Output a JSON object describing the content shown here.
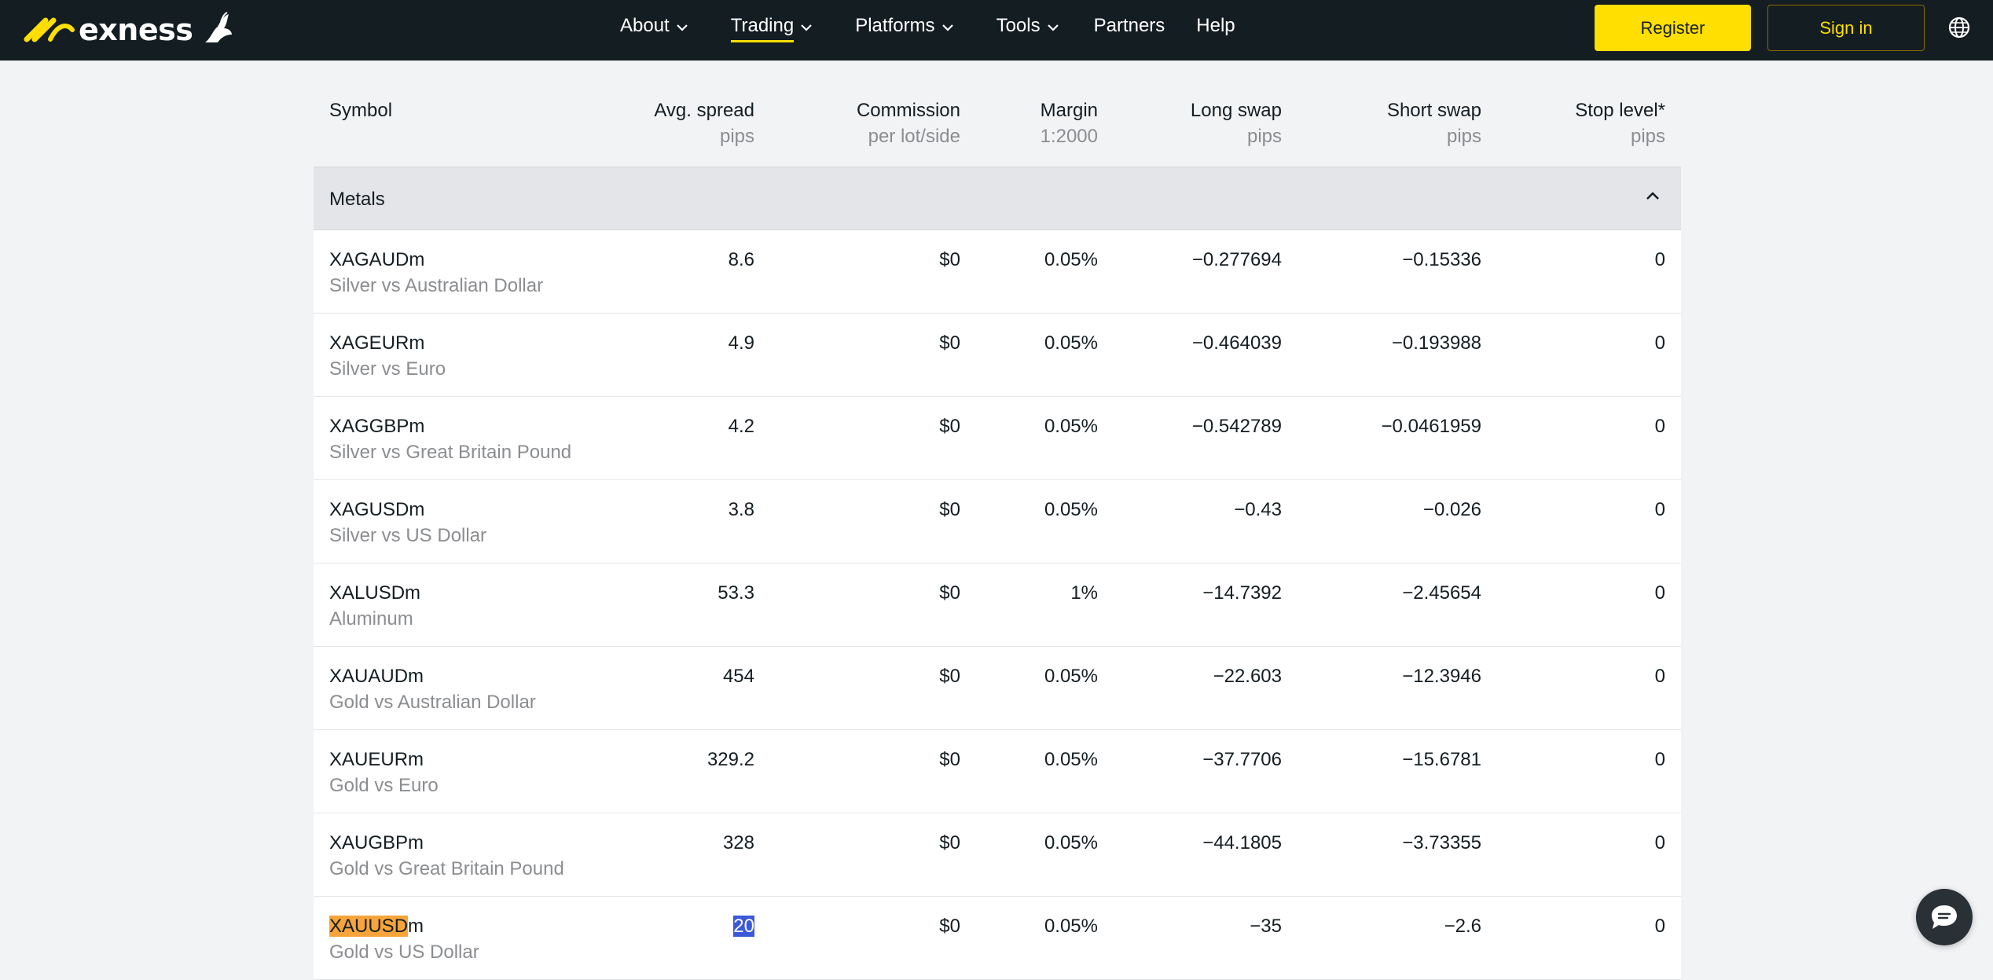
{
  "header": {
    "logo_text": "exness",
    "nav": [
      {
        "label": "About",
        "has_dropdown": true
      },
      {
        "label": "Trading",
        "has_dropdown": true,
        "active": true
      },
      {
        "label": "Platforms",
        "has_dropdown": true
      },
      {
        "label": "Tools",
        "has_dropdown": true
      },
      {
        "label": "Partners",
        "has_dropdown": false
      },
      {
        "label": "Help",
        "has_dropdown": false
      }
    ],
    "register_label": "Register",
    "signin_label": "Sign in",
    "language_icon": "globe-icon"
  },
  "table": {
    "columns": [
      {
        "title": "Symbol",
        "subtitle": ""
      },
      {
        "title": "Avg. spread",
        "subtitle": "pips"
      },
      {
        "title": "Commission",
        "subtitle": "per lot/side"
      },
      {
        "title": "Margin",
        "subtitle": "1:2000"
      },
      {
        "title": "Long swap",
        "subtitle": "pips"
      },
      {
        "title": "Short swap",
        "subtitle": "pips"
      },
      {
        "title": "Stop level*",
        "subtitle": "pips"
      }
    ],
    "group": {
      "label": "Metals",
      "expanded": true
    },
    "rows": [
      {
        "symbol": "XAGAUDm",
        "description": "Silver vs Australian Dollar",
        "spread": "8.6",
        "commission": "$0",
        "margin": "0.05%",
        "long_swap": "−0.277694",
        "short_swap": "−0.15336",
        "stop_level": "0"
      },
      {
        "symbol": "XAGEURm",
        "description": "Silver vs Euro",
        "spread": "4.9",
        "commission": "$0",
        "margin": "0.05%",
        "long_swap": "−0.464039",
        "short_swap": "−0.193988",
        "stop_level": "0"
      },
      {
        "symbol": "XAGGBPm",
        "description": "Silver vs Great Britain Pound",
        "spread": "4.2",
        "commission": "$0",
        "margin": "0.05%",
        "long_swap": "−0.542789",
        "short_swap": "−0.0461959",
        "stop_level": "0"
      },
      {
        "symbol": "XAGUSDm",
        "description": "Silver vs US Dollar",
        "spread": "3.8",
        "commission": "$0",
        "margin": "0.05%",
        "long_swap": "−0.43",
        "short_swap": "−0.026",
        "stop_level": "0"
      },
      {
        "symbol": "XALUSDm",
        "description": "Aluminum",
        "spread": "53.3",
        "commission": "$0",
        "margin": "1%",
        "long_swap": "−14.7392",
        "short_swap": "−2.45654",
        "stop_level": "0"
      },
      {
        "symbol": "XAUAUDm",
        "description": "Gold vs Australian Dollar",
        "spread": "454",
        "commission": "$0",
        "margin": "0.05%",
        "long_swap": "−22.603",
        "short_swap": "−12.3946",
        "stop_level": "0"
      },
      {
        "symbol": "XAUEURm",
        "description": "Gold vs Euro",
        "spread": "329.2",
        "commission": "$0",
        "margin": "0.05%",
        "long_swap": "−37.7706",
        "short_swap": "−15.6781",
        "stop_level": "0"
      },
      {
        "symbol": "XAUGBPm",
        "description": "Gold vs Great Britain Pound",
        "spread": "328",
        "commission": "$0",
        "margin": "0.05%",
        "long_swap": "−44.1805",
        "short_swap": "−3.73355",
        "stop_level": "0"
      },
      {
        "symbol_highlight": "XAUUSD",
        "symbol_rest": "m",
        "description": "Gold vs US Dollar",
        "spread": "20",
        "commission": "$0",
        "margin": "0.05%",
        "long_swap": "−35",
        "short_swap": "−2.6",
        "stop_level": "0"
      }
    ]
  },
  "colors": {
    "header_bg": "#141d22",
    "brand_yellow": "#ffde02",
    "highlight_orange": "#f7a43b",
    "selection_blue": "#3b58d8"
  }
}
